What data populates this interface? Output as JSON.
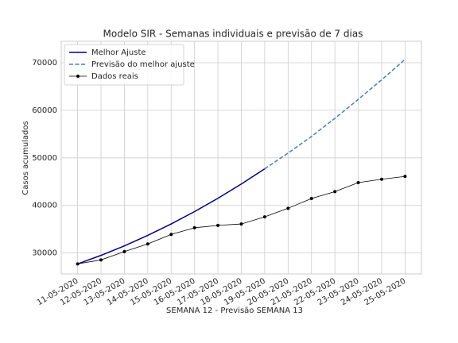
{
  "chart_data": {
    "type": "line",
    "title": "Modelo SIR - Semanas individuais e previsão de 7 dias",
    "xlabel": "SEMANA 12 - Previsão SEMANA 13",
    "ylabel": "Casos acumulados",
    "categories": [
      "11-05-2020",
      "12-05-2020",
      "13-05-2020",
      "14-05-2020",
      "15-05-2020",
      "16-05-2020",
      "17-05-2020",
      "18-05-2020",
      "19-05-2020",
      "20-05-2020",
      "21-05-2020",
      "22-05-2020",
      "23-05-2020",
      "24-05-2020",
      "25-05-2020"
    ],
    "series": [
      {
        "name": "Melhor Ajuste",
        "color": "#00008b",
        "linestyle": "solid",
        "values": [
          27700,
          29500,
          31500,
          33700,
          36100,
          38700,
          41500,
          44500,
          47700,
          null,
          null,
          null,
          null,
          null,
          null
        ]
      },
      {
        "name": "Previsão do melhor ajuste",
        "color": "#4682b4",
        "linestyle": "dashed",
        "values": [
          null,
          null,
          null,
          null,
          null,
          null,
          null,
          null,
          47700,
          51000,
          54500,
          58300,
          62300,
          66400,
          70700
        ]
      },
      {
        "name": "Dados reais",
        "color": "#000000",
        "linestyle": "solid",
        "marker": "o",
        "values": [
          27700,
          28550,
          30300,
          31900,
          33900,
          35300,
          35800,
          36100,
          37600,
          39400,
          41450,
          42900,
          44800,
          45500,
          46100
        ]
      }
    ],
    "ylim": [
      25600,
      74500
    ],
    "yticks": [
      30000,
      40000,
      50000,
      60000,
      70000
    ],
    "grid": true,
    "legend": "upper left"
  }
}
